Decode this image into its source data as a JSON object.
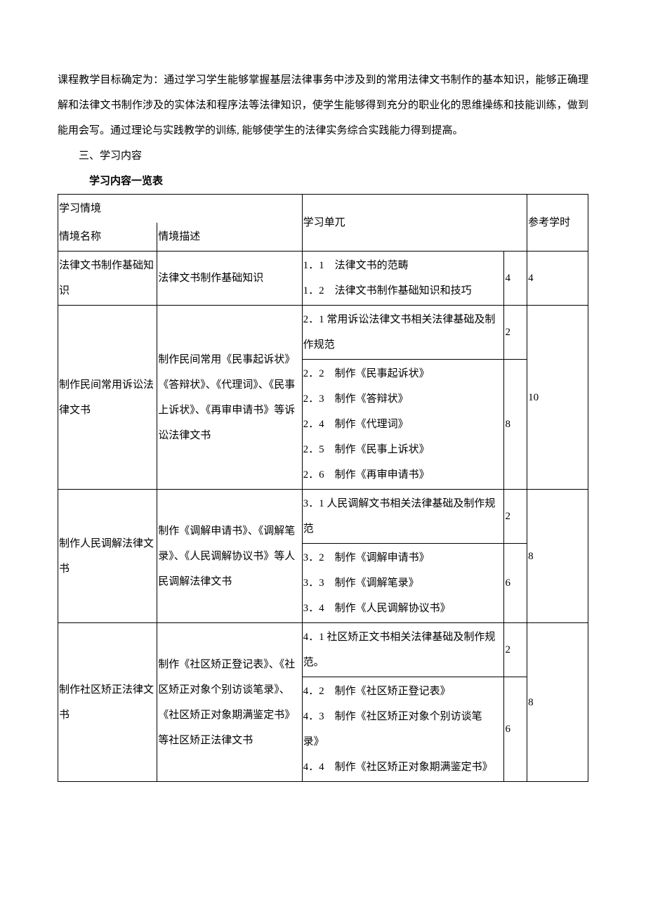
{
  "intro_paragraph": "课程教学目标确定为：通过学习学生能够掌握基层法律事务中涉及到的常用法律文书制作的基本知识，能够正确理解和法律文书制作涉及的实体法和程序法等法律知识，使学生能够得到充分的职业化的思维操练和技能训练，做到能用会写。通过理论与实践教学的训练, 能够使学生的法律实务综合实践能力得到提高。",
  "section_heading": "三、学习内容",
  "table_title": "学习内容一览表",
  "header": {
    "context": "学习情境",
    "context_name": "情境名称",
    "context_desc": "情境描述",
    "unit": "学习单兀",
    "ref_hours": "参考学时"
  },
  "rows": [
    {
      "name": "法律文书制作基础知识",
      "desc": "法律文书制作基础知识",
      "units": [
        {
          "text": "1．1　法律文书的范畴\n1．2　法律文书制作基础知识和技巧",
          "hours": "4"
        }
      ],
      "total_hours": "4"
    },
    {
      "name": "制作民间常用诉讼法律文书",
      "desc": "制作民间常用《民事起诉状》《答辩状》、《代理词》、《民事上诉状》、《再审申请书》等诉讼法律文书",
      "units": [
        {
          "text": "2．1 常用诉讼法律文书相关法律基础及制作规范",
          "hours": "2"
        },
        {
          "text": "2．2　制作《民事起诉状》\n2．3　制作《答辩状》\n2．4　制作《代理词》\n2．5　制作《民事上诉状》\n2．6　制作《再审申请书》",
          "hours": "8"
        }
      ],
      "total_hours": "10"
    },
    {
      "name": "制作人民调解法律文书",
      "desc": "制作《调解申请书》、《调解笔录》、《人民调解协议书》等人民调解法律文书",
      "units": [
        {
          "text": "3．1 人民调解文书相关法律基础及制作规范",
          "hours": "2"
        },
        {
          "text": "3．2　制作《调解申请书》\n3．3　制作《调解笔录》\n3．4　制作《人民调解协议书》",
          "hours": "6"
        }
      ],
      "total_hours": "8"
    },
    {
      "name": "制作社区矫正法律文书",
      "desc": "制作《社区矫正登记表》、《社区矫正对象个别访谈笔录》、《社区矫正对象期满鉴定书》等社区矫正法律文书",
      "units": [
        {
          "text": "4．1 社区矫正文书相关法律基础及制作规范。",
          "hours": "2"
        },
        {
          "text": "4．2　制作《社区矫正登记表》\n4．3　制作《社区矫正对象个别访谈笔录》\n4．4　制作《社区矫正对象期满鉴定书》",
          "hours": "6"
        }
      ],
      "total_hours": "8"
    }
  ]
}
